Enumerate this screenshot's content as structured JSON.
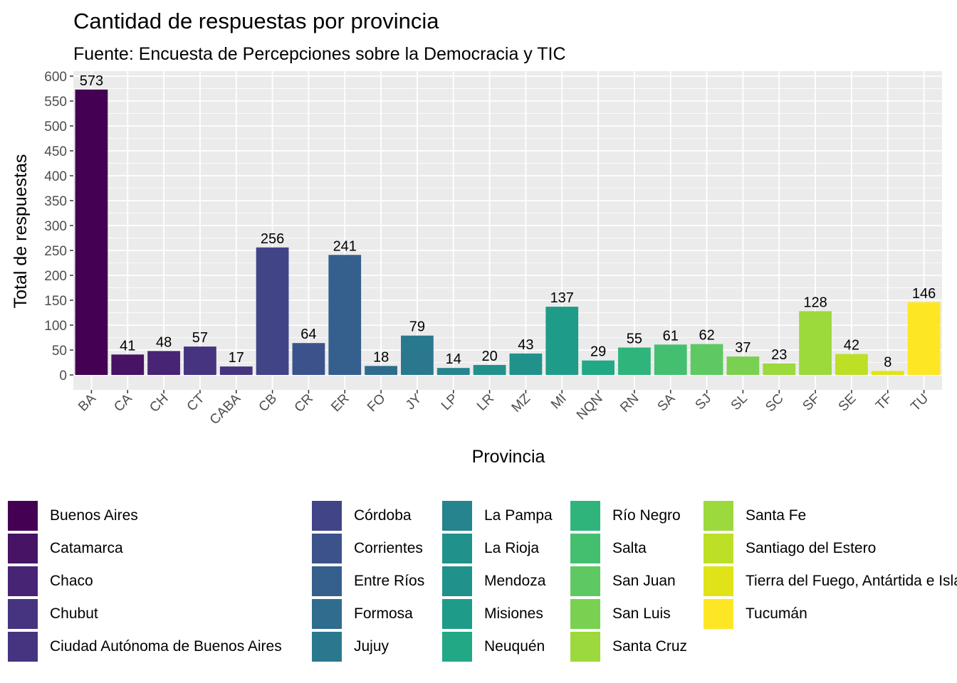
{
  "chart_data": {
    "type": "bar",
    "title": "Cantidad de respuestas por provincia",
    "subtitle": "Fuente: Encuesta de Percepciones sobre la Democracia y TIC",
    "xlabel": "Provincia",
    "ylabel": "Total de respuestas",
    "ylim": [
      0,
      600
    ],
    "yticks": [
      0,
      50,
      100,
      150,
      200,
      250,
      300,
      350,
      400,
      450,
      500,
      550,
      600
    ],
    "grid": true,
    "legend_position": "bottom",
    "categories": [
      "BA",
      "CA",
      "CH",
      "CT",
      "CABA",
      "CB",
      "CR",
      "ER",
      "FO",
      "JY",
      "LP",
      "LR",
      "MZ",
      "MI",
      "NQN",
      "RN",
      "SA",
      "SJ",
      "SL",
      "SC",
      "SF",
      "SE",
      "TF",
      "TU"
    ],
    "values": [
      573,
      41,
      48,
      57,
      17,
      256,
      64,
      241,
      18,
      79,
      14,
      20,
      43,
      137,
      29,
      55,
      61,
      62,
      37,
      23,
      128,
      42,
      8,
      146
    ],
    "colors": [
      "#440154",
      "#471365",
      "#482475",
      "#463480",
      "#414487",
      "#3b528b",
      "#355f8d",
      "#2f6c8e",
      "#2a788e",
      "#25848e",
      "#21918c",
      "#1e9c89",
      "#22a884",
      "#2fb47c",
      "#44bf70",
      "#5ec962",
      "#7ad151",
      "#9bd93c",
      "#bddf26",
      "#dfe318",
      "#fde725"
    ],
    "legend": [
      {
        "label": "Buenos Aires",
        "color": "#440154"
      },
      {
        "label": "Catamarca",
        "color": "#471365"
      },
      {
        "label": "Chaco",
        "color": "#482475"
      },
      {
        "label": "Chubut",
        "color": "#463480"
      },
      {
        "label": "Ciudad Autónoma de Buenos Aires",
        "color": "#414487"
      },
      {
        "label": "Córdoba",
        "color": "#3b528b"
      },
      {
        "label": "Corrientes",
        "color": "#355f8d"
      },
      {
        "label": "Entre Ríos",
        "color": "#2f6c8e"
      },
      {
        "label": "Formosa",
        "color": "#2a788e"
      },
      {
        "label": "Jujuy",
        "color": "#25848e"
      },
      {
        "label": "La Pampa",
        "color": "#21918c"
      },
      {
        "label": "La Rioja",
        "color": "#1e9c89"
      },
      {
        "label": "Mendoza",
        "color": "#22a884"
      },
      {
        "label": "Misiones",
        "color": "#2fb47c"
      },
      {
        "label": "Neuquén",
        "color": "#44bf70"
      },
      {
        "label": "Río Negro",
        "color": "#5ec962"
      },
      {
        "label": "Salta",
        "color": "#7ad151"
      },
      {
        "label": "San Juan",
        "color": "#9bd93c"
      },
      {
        "label": "San Luis",
        "color": "#bddf26"
      },
      {
        "label": "Santa Cruz",
        "color": "#dfe318"
      },
      {
        "label": "Santa Fe",
        "color": "#fde725"
      },
      {
        "label": "Santiago del Estero",
        "color": "#fde725"
      },
      {
        "label": "Tierra del Fuego, Antártida e Islas del Atlántico Sur",
        "color": "#fde725"
      },
      {
        "label": "Tucumán",
        "color": "#fde725"
      }
    ]
  }
}
